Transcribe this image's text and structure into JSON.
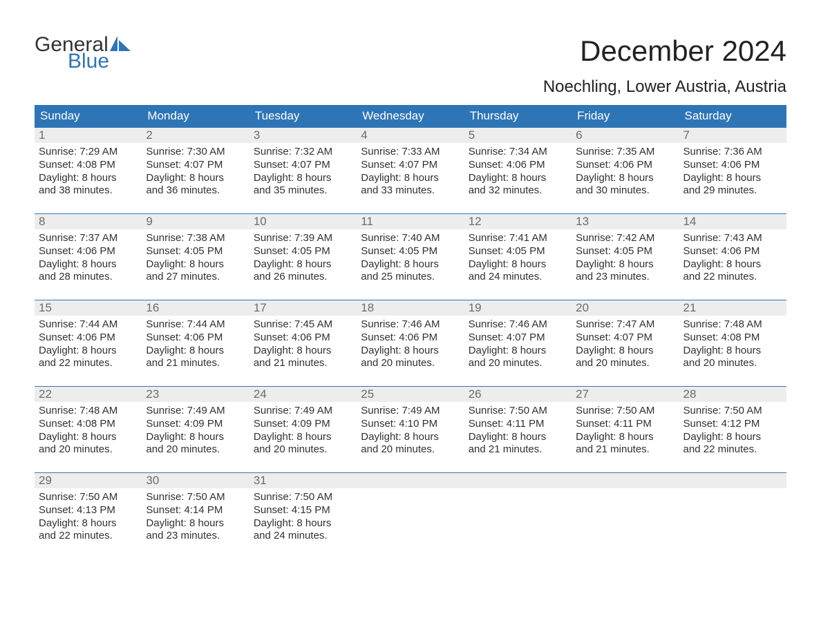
{
  "brand": {
    "line1": "General",
    "line2": "Blue",
    "accent": "#2e75b6"
  },
  "title": "December 2024",
  "location": "Noechling, Lower Austria, Austria",
  "weekday_labels": [
    "Sunday",
    "Monday",
    "Tuesday",
    "Wednesday",
    "Thursday",
    "Friday",
    "Saturday"
  ],
  "colors": {
    "header_bg": "#2e75b6",
    "header_text": "#ffffff",
    "daynum_bg": "#ededed",
    "daynum_text": "#6b6b6b",
    "body_text": "#313131",
    "week_border": "#2e75b6"
  },
  "weeks": [
    [
      {
        "n": "1",
        "sr": "Sunrise: 7:29 AM",
        "ss": "Sunset: 4:08 PM",
        "d1": "Daylight: 8 hours",
        "d2": "and 38 minutes."
      },
      {
        "n": "2",
        "sr": "Sunrise: 7:30 AM",
        "ss": "Sunset: 4:07 PM",
        "d1": "Daylight: 8 hours",
        "d2": "and 36 minutes."
      },
      {
        "n": "3",
        "sr": "Sunrise: 7:32 AM",
        "ss": "Sunset: 4:07 PM",
        "d1": "Daylight: 8 hours",
        "d2": "and 35 minutes."
      },
      {
        "n": "4",
        "sr": "Sunrise: 7:33 AM",
        "ss": "Sunset: 4:07 PM",
        "d1": "Daylight: 8 hours",
        "d2": "and 33 minutes."
      },
      {
        "n": "5",
        "sr": "Sunrise: 7:34 AM",
        "ss": "Sunset: 4:06 PM",
        "d1": "Daylight: 8 hours",
        "d2": "and 32 minutes."
      },
      {
        "n": "6",
        "sr": "Sunrise: 7:35 AM",
        "ss": "Sunset: 4:06 PM",
        "d1": "Daylight: 8 hours",
        "d2": "and 30 minutes."
      },
      {
        "n": "7",
        "sr": "Sunrise: 7:36 AM",
        "ss": "Sunset: 4:06 PM",
        "d1": "Daylight: 8 hours",
        "d2": "and 29 minutes."
      }
    ],
    [
      {
        "n": "8",
        "sr": "Sunrise: 7:37 AM",
        "ss": "Sunset: 4:06 PM",
        "d1": "Daylight: 8 hours",
        "d2": "and 28 minutes."
      },
      {
        "n": "9",
        "sr": "Sunrise: 7:38 AM",
        "ss": "Sunset: 4:05 PM",
        "d1": "Daylight: 8 hours",
        "d2": "and 27 minutes."
      },
      {
        "n": "10",
        "sr": "Sunrise: 7:39 AM",
        "ss": "Sunset: 4:05 PM",
        "d1": "Daylight: 8 hours",
        "d2": "and 26 minutes."
      },
      {
        "n": "11",
        "sr": "Sunrise: 7:40 AM",
        "ss": "Sunset: 4:05 PM",
        "d1": "Daylight: 8 hours",
        "d2": "and 25 minutes."
      },
      {
        "n": "12",
        "sr": "Sunrise: 7:41 AM",
        "ss": "Sunset: 4:05 PM",
        "d1": "Daylight: 8 hours",
        "d2": "and 24 minutes."
      },
      {
        "n": "13",
        "sr": "Sunrise: 7:42 AM",
        "ss": "Sunset: 4:05 PM",
        "d1": "Daylight: 8 hours",
        "d2": "and 23 minutes."
      },
      {
        "n": "14",
        "sr": "Sunrise: 7:43 AM",
        "ss": "Sunset: 4:06 PM",
        "d1": "Daylight: 8 hours",
        "d2": "and 22 minutes."
      }
    ],
    [
      {
        "n": "15",
        "sr": "Sunrise: 7:44 AM",
        "ss": "Sunset: 4:06 PM",
        "d1": "Daylight: 8 hours",
        "d2": "and 22 minutes."
      },
      {
        "n": "16",
        "sr": "Sunrise: 7:44 AM",
        "ss": "Sunset: 4:06 PM",
        "d1": "Daylight: 8 hours",
        "d2": "and 21 minutes."
      },
      {
        "n": "17",
        "sr": "Sunrise: 7:45 AM",
        "ss": "Sunset: 4:06 PM",
        "d1": "Daylight: 8 hours",
        "d2": "and 21 minutes."
      },
      {
        "n": "18",
        "sr": "Sunrise: 7:46 AM",
        "ss": "Sunset: 4:06 PM",
        "d1": "Daylight: 8 hours",
        "d2": "and 20 minutes."
      },
      {
        "n": "19",
        "sr": "Sunrise: 7:46 AM",
        "ss": "Sunset: 4:07 PM",
        "d1": "Daylight: 8 hours",
        "d2": "and 20 minutes."
      },
      {
        "n": "20",
        "sr": "Sunrise: 7:47 AM",
        "ss": "Sunset: 4:07 PM",
        "d1": "Daylight: 8 hours",
        "d2": "and 20 minutes."
      },
      {
        "n": "21",
        "sr": "Sunrise: 7:48 AM",
        "ss": "Sunset: 4:08 PM",
        "d1": "Daylight: 8 hours",
        "d2": "and 20 minutes."
      }
    ],
    [
      {
        "n": "22",
        "sr": "Sunrise: 7:48 AM",
        "ss": "Sunset: 4:08 PM",
        "d1": "Daylight: 8 hours",
        "d2": "and 20 minutes."
      },
      {
        "n": "23",
        "sr": "Sunrise: 7:49 AM",
        "ss": "Sunset: 4:09 PM",
        "d1": "Daylight: 8 hours",
        "d2": "and 20 minutes."
      },
      {
        "n": "24",
        "sr": "Sunrise: 7:49 AM",
        "ss": "Sunset: 4:09 PM",
        "d1": "Daylight: 8 hours",
        "d2": "and 20 minutes."
      },
      {
        "n": "25",
        "sr": "Sunrise: 7:49 AM",
        "ss": "Sunset: 4:10 PM",
        "d1": "Daylight: 8 hours",
        "d2": "and 20 minutes."
      },
      {
        "n": "26",
        "sr": "Sunrise: 7:50 AM",
        "ss": "Sunset: 4:11 PM",
        "d1": "Daylight: 8 hours",
        "d2": "and 21 minutes."
      },
      {
        "n": "27",
        "sr": "Sunrise: 7:50 AM",
        "ss": "Sunset: 4:11 PM",
        "d1": "Daylight: 8 hours",
        "d2": "and 21 minutes."
      },
      {
        "n": "28",
        "sr": "Sunrise: 7:50 AM",
        "ss": "Sunset: 4:12 PM",
        "d1": "Daylight: 8 hours",
        "d2": "and 22 minutes."
      }
    ],
    [
      {
        "n": "29",
        "sr": "Sunrise: 7:50 AM",
        "ss": "Sunset: 4:13 PM",
        "d1": "Daylight: 8 hours",
        "d2": "and 22 minutes."
      },
      {
        "n": "30",
        "sr": "Sunrise: 7:50 AM",
        "ss": "Sunset: 4:14 PM",
        "d1": "Daylight: 8 hours",
        "d2": "and 23 minutes."
      },
      {
        "n": "31",
        "sr": "Sunrise: 7:50 AM",
        "ss": "Sunset: 4:15 PM",
        "d1": "Daylight: 8 hours",
        "d2": "and 24 minutes."
      },
      {
        "empty": true
      },
      {
        "empty": true
      },
      {
        "empty": true
      },
      {
        "empty": true
      }
    ]
  ]
}
